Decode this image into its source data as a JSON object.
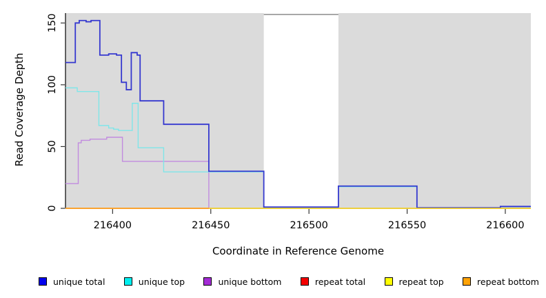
{
  "chart_data": {
    "type": "line",
    "title": "",
    "xlabel": "Coordinate in Reference Genome",
    "ylabel": "Read Coverage Depth",
    "xlim": [
      216376,
      216613
    ],
    "ylim": [
      0,
      158
    ],
    "x_ticks": [
      216400,
      216450,
      216500,
      216550,
      216600
    ],
    "y_ticks": [
      0,
      50,
      100,
      150
    ],
    "grid": false,
    "plot_bg": "#ffffff",
    "axis_color": "#000000",
    "background_regions": [
      {
        "x0": 216376,
        "x1": 216477,
        "color": "#dbdbdb"
      },
      {
        "x0": 216515,
        "x1": 216613,
        "color": "#dbdbdb"
      }
    ],
    "gap_top_border": {
      "x0": 216477,
      "x1": 216515,
      "color": "#8a8a8a"
    },
    "series": [
      {
        "name": "unique bottom",
        "color": "#c18bdf",
        "width": 1.4,
        "points": [
          [
            216376,
            20
          ],
          [
            216382.5,
            53
          ],
          [
            216384,
            55
          ],
          [
            216388.5,
            56
          ],
          [
            216397,
            57.5
          ],
          [
            216405,
            38
          ],
          [
            216449,
            0
          ]
        ],
        "x_end": 216613
      },
      {
        "name": "unique top",
        "color": "#7fe6e9",
        "width": 1.4,
        "points": [
          [
            216376,
            97.5
          ],
          [
            216382,
            94.5
          ],
          [
            216393,
            67
          ],
          [
            216398,
            65
          ],
          [
            216400.5,
            64
          ],
          [
            216403,
            63
          ],
          [
            216410,
            85
          ],
          [
            216413,
            49
          ],
          [
            216426,
            29.5
          ],
          [
            216477,
            0.7
          ],
          [
            216515,
            17.5
          ],
          [
            216555,
            0.3
          ],
          [
            216597.5,
            1.2
          ]
        ],
        "x_end": 216613
      },
      {
        "name": "unique total",
        "color": "#3538cf",
        "width": 1.8,
        "points": [
          [
            216376,
            118
          ],
          [
            216381,
            150
          ],
          [
            216383,
            152
          ],
          [
            216386.5,
            151
          ],
          [
            216389,
            152
          ],
          [
            216393.5,
            124
          ],
          [
            216398,
            125
          ],
          [
            216402,
            124
          ],
          [
            216404.5,
            102
          ],
          [
            216407,
            96
          ],
          [
            216409.5,
            126
          ],
          [
            216412.5,
            124
          ],
          [
            216414,
            87
          ],
          [
            216426,
            68
          ],
          [
            216449,
            30
          ],
          [
            216477,
            1
          ],
          [
            216515,
            18
          ],
          [
            216555,
            0.5
          ],
          [
            216597.5,
            1.5
          ]
        ],
        "x_end": 216613
      },
      {
        "name": "repeat total",
        "color": "#e4627b",
        "width": 1.4,
        "points": [
          [
            216376,
            0
          ]
        ],
        "x_end": 216613
      },
      {
        "name": "repeat top",
        "color": "#ffff00",
        "width": 1.2,
        "points": [
          [
            216376,
            0
          ]
        ],
        "x_end": 216613
      },
      {
        "name": "repeat bottom",
        "color": "#ffa226",
        "width": 1.8,
        "points": [
          [
            216376,
            0
          ]
        ],
        "x_end": 216449
      }
    ]
  },
  "legend": {
    "items": [
      {
        "label": "unique total",
        "color": "#0202ee"
      },
      {
        "label": "unique top",
        "color": "#00efef"
      },
      {
        "label": "unique bottom",
        "color": "#a42cd6"
      },
      {
        "label": "repeat total",
        "color": "#f40000"
      },
      {
        "label": "repeat top",
        "color": "#ffff00"
      },
      {
        "label": "repeat bottom",
        "color": "#ffa306"
      }
    ]
  }
}
